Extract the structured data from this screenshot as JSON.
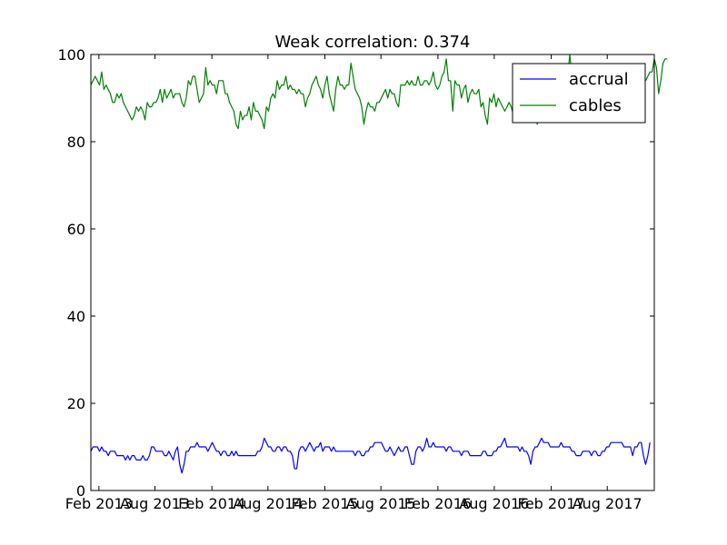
{
  "chart_data": {
    "type": "line",
    "title": "Weak correlation: 0.374",
    "xlabel": "",
    "ylabel": "",
    "x_start": "2013-01-06",
    "x_end": "2017-12-31",
    "x_frequency": "weekly",
    "xlim": [
      "2013-01-06",
      "2017-12-31"
    ],
    "ylim": [
      0,
      100
    ],
    "y_ticks": [
      0,
      20,
      40,
      60,
      80,
      100
    ],
    "x_ticks": [
      {
        "date": "2013-02-01",
        "label": "Feb 2013"
      },
      {
        "date": "2013-08-01",
        "label": "Aug 2013"
      },
      {
        "date": "2014-02-01",
        "label": "Feb 2014"
      },
      {
        "date": "2014-08-01",
        "label": "Aug 2014"
      },
      {
        "date": "2015-02-01",
        "label": "Feb 2015"
      },
      {
        "date": "2015-08-01",
        "label": "Aug 2015"
      },
      {
        "date": "2016-02-01",
        "label": "Feb 2016"
      },
      {
        "date": "2016-08-01",
        "label": "Aug 2016"
      },
      {
        "date": "2017-02-01",
        "label": "Feb 2017"
      },
      {
        "date": "2017-08-01",
        "label": "Aug 2017"
      }
    ],
    "legend": "top-right",
    "grid": false,
    "series": [
      {
        "name": "accrual",
        "color": "#0000ff",
        "values": [
          9,
          10,
          10,
          10,
          9,
          10,
          9,
          9,
          8,
          9,
          9,
          9,
          8,
          8,
          8,
          8,
          7,
          8,
          7,
          8,
          8,
          7,
          7,
          7,
          8,
          7,
          7,
          8,
          10,
          10,
          9,
          9,
          9,
          9,
          8,
          8,
          9,
          8,
          7,
          9,
          10,
          6,
          4,
          6,
          9,
          9,
          10,
          10,
          10,
          11,
          10,
          10,
          10,
          10,
          9,
          10,
          11,
          10,
          9,
          9,
          8,
          9,
          9,
          8,
          8,
          9,
          8,
          9,
          8,
          8,
          8,
          8,
          8,
          8,
          8,
          8,
          8,
          9,
          9,
          10,
          12,
          11,
          10,
          10,
          9,
          9,
          10,
          10,
          9,
          10,
          10,
          9,
          9,
          8,
          5,
          5,
          9,
          10,
          10,
          9,
          10,
          11,
          10,
          9,
          10,
          10,
          11,
          9,
          10,
          10,
          10,
          9,
          10,
          9,
          9,
          9,
          9,
          9,
          9,
          9,
          9,
          9,
          8,
          9,
          9,
          8,
          8,
          9,
          9,
          10,
          10,
          11,
          11,
          11,
          11,
          10,
          9,
          9,
          10,
          9,
          8,
          9,
          10,
          9,
          9,
          10,
          10,
          8,
          6,
          6,
          9,
          10,
          10,
          9,
          10,
          12,
          10,
          10,
          11,
          10,
          10,
          10,
          10,
          10,
          9,
          10,
          10,
          9,
          9,
          9,
          9,
          8,
          9,
          9,
          9,
          8,
          8,
          8,
          8,
          8,
          8,
          9,
          9,
          8,
          8,
          8,
          9,
          9,
          10,
          10,
          11,
          12,
          10,
          10,
          10,
          10,
          10,
          10,
          9,
          10,
          9,
          9,
          8,
          6,
          9,
          10,
          10,
          11,
          12,
          11,
          11,
          11,
          10,
          10,
          10,
          10,
          10,
          11,
          10,
          10,
          10,
          10,
          9,
          9,
          8,
          8,
          8,
          9,
          9,
          9,
          9,
          8,
          9,
          9,
          8,
          8,
          9,
          9,
          10,
          10,
          11,
          11,
          11,
          11,
          11,
          11,
          10,
          10,
          10,
          10,
          8,
          10,
          10,
          11,
          11,
          8,
          6,
          8,
          11
        ]
      },
      {
        "name": "cables",
        "color": "#008000",
        "values": [
          93,
          94,
          95,
          94,
          93,
          96,
          92,
          93,
          92,
          91,
          89,
          89,
          91,
          90,
          91,
          89,
          88,
          87,
          86,
          85,
          86,
          88,
          87,
          88,
          87,
          85,
          89,
          88,
          88,
          89,
          89,
          90,
          92,
          89,
          92,
          90,
          91,
          92,
          90,
          91,
          91,
          91,
          89,
          88,
          90,
          94,
          93,
          95,
          95,
          92,
          89,
          90,
          91,
          97,
          93,
          94,
          93,
          93,
          91,
          94,
          94,
          94,
          91,
          91,
          89,
          88,
          87,
          84,
          83,
          87,
          85,
          86,
          86,
          88,
          85,
          89,
          87,
          87,
          86,
          85,
          83,
          88,
          87,
          90,
          91,
          90,
          94,
          92,
          93,
          93,
          95,
          92,
          93,
          92,
          92,
          91,
          92,
          91,
          91,
          88,
          90,
          91,
          93,
          94,
          95,
          93,
          92,
          90,
          93,
          95,
          91,
          89,
          87,
          92,
          95,
          93,
          93,
          92,
          93,
          93,
          98,
          95,
          92,
          91,
          90,
          88,
          84,
          87,
          89,
          88,
          88,
          87,
          89,
          89,
          90,
          91,
          92,
          90,
          92,
          91,
          91,
          89,
          88,
          93,
          93,
          93,
          94,
          93,
          94,
          93,
          93,
          95,
          93,
          93,
          94,
          94,
          93,
          94,
          96,
          93,
          92,
          93,
          95,
          96,
          99,
          94,
          94,
          87,
          94,
          93,
          93,
          90,
          92,
          93,
          89,
          91,
          92,
          91,
          91,
          92,
          88,
          89,
          86,
          84,
          90,
          89,
          91,
          88,
          90,
          89,
          88,
          87,
          88,
          89,
          88,
          86,
          87,
          87,
          86,
          87,
          87,
          86,
          87,
          89,
          87,
          86,
          84,
          89,
          90,
          93,
          91,
          92,
          91,
          93,
          92,
          93,
          94,
          92,
          94,
          93,
          95,
          100,
          95,
          95,
          95,
          94,
          95,
          96,
          95,
          94,
          93,
          94,
          94,
          95,
          95,
          94,
          95,
          96,
          93,
          93,
          94,
          94,
          95,
          95,
          95,
          95,
          96,
          95,
          94,
          94,
          95,
          95,
          95,
          94,
          94,
          95,
          94,
          95,
          96,
          96,
          99,
          97,
          91,
          94,
          98,
          99,
          99
        ]
      }
    ]
  }
}
